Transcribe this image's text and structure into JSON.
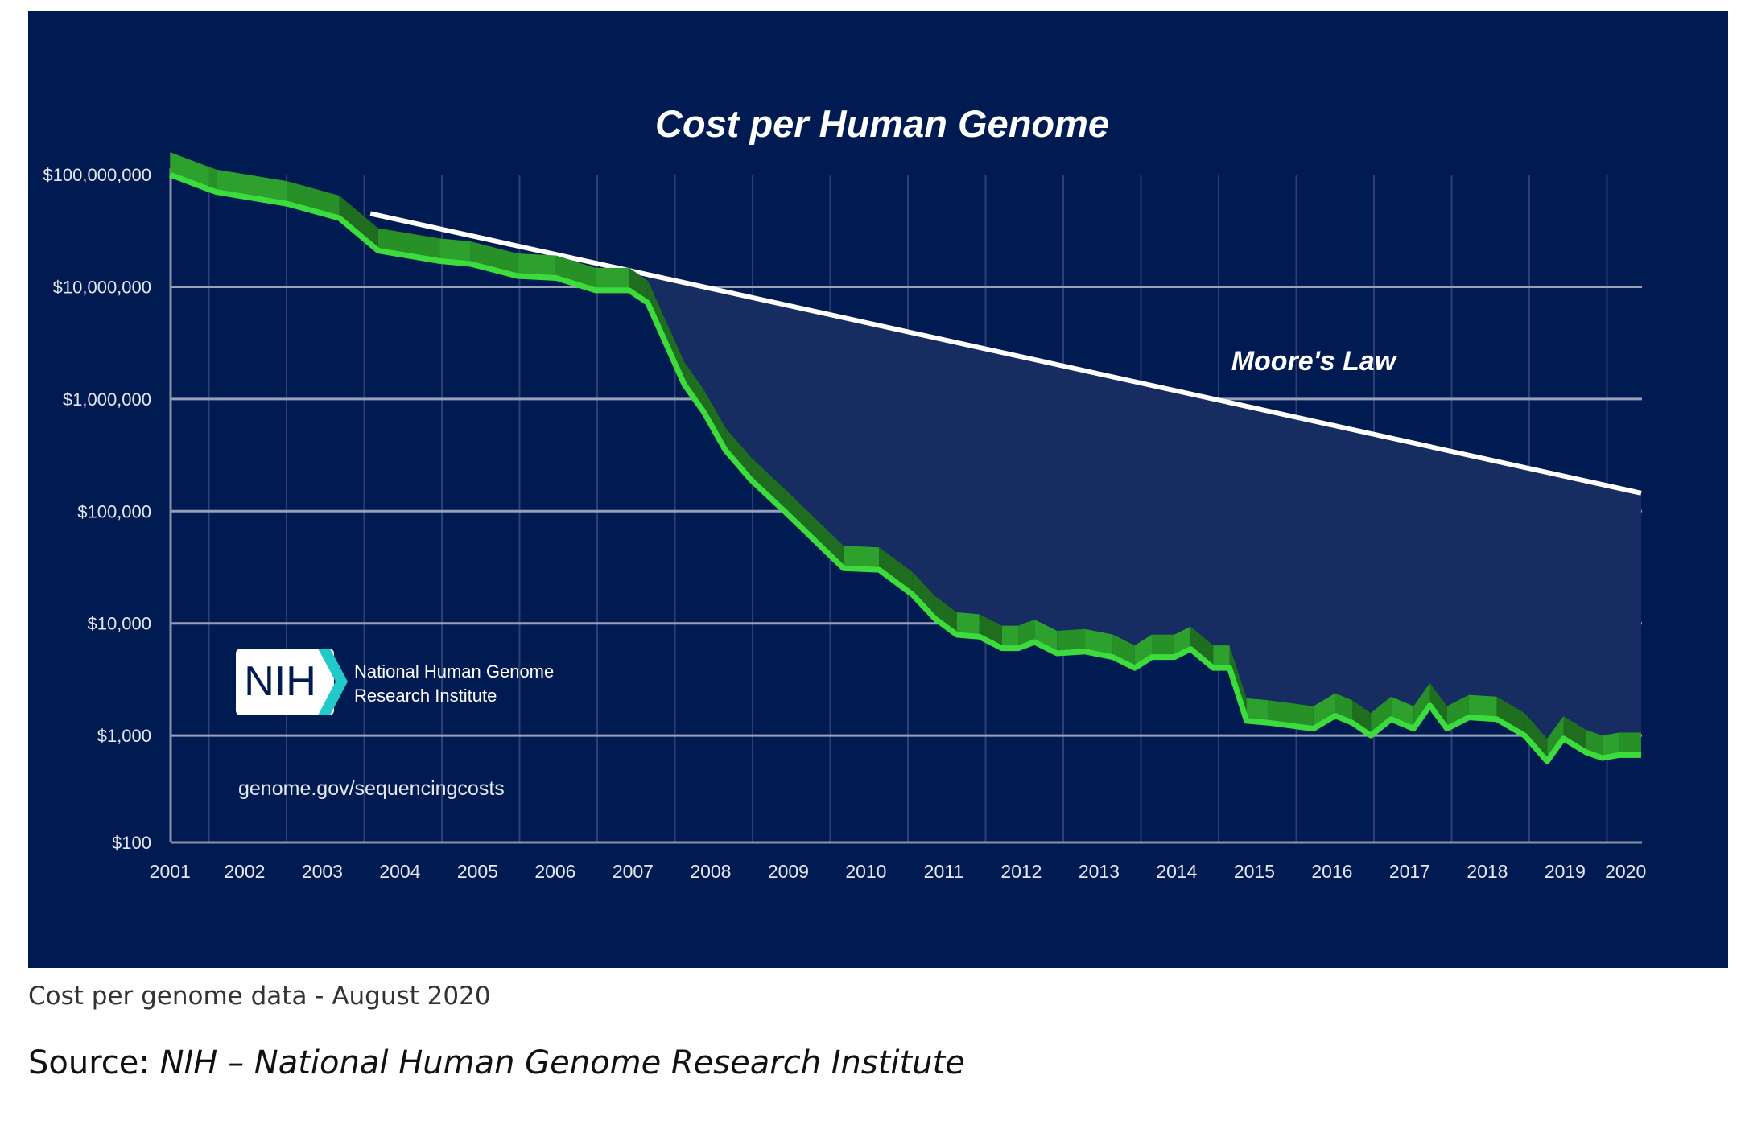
{
  "chart_data": {
    "type": "line",
    "title": "Cost per Human Genome",
    "xlabel": "",
    "ylabel": "",
    "yscale": "log",
    "ylim": [
      100,
      100000000
    ],
    "y_ticks": [
      {
        "value": 100000000,
        "label": "$100,000,000"
      },
      {
        "value": 10000000,
        "label": "$10,000,000"
      },
      {
        "value": 1000000,
        "label": "$1,000,000"
      },
      {
        "value": 100000,
        "label": "$100,000"
      },
      {
        "value": 10000,
        "label": "$10,000"
      },
      {
        "value": 1000,
        "label": "$1,000"
      },
      {
        "value": 100,
        "label": "$100"
      }
    ],
    "x_ticks": [
      "2001",
      "2002",
      "2003",
      "2004",
      "2005",
      "2006",
      "2007",
      "2008",
      "2009",
      "2010",
      "2011",
      "2012",
      "2013",
      "2014",
      "2015",
      "2016",
      "2017",
      "2018",
      "2019",
      "2020"
    ],
    "grid": true,
    "series": [
      {
        "name": "Cost per Genome",
        "color": "#3ddc3d",
        "x": [
          2001.04,
          2001.54,
          2001.64,
          2002.55,
          2003.22,
          2003.72,
          2004.51,
          2004.91,
          2005.51,
          2006.01,
          2006.52,
          2006.95,
          2007.19,
          2007.66,
          2007.91,
          2008.19,
          2008.52,
          2008.95,
          2009.71,
          2010.17,
          2010.6,
          2010.89,
          2011.17,
          2011.46,
          2011.75,
          2011.96,
          2012.17,
          2012.46,
          2012.82,
          2013.18,
          2013.46,
          2013.68,
          2013.97,
          2014.18,
          2014.47,
          2014.68,
          2014.9,
          2015.18,
          2015.76,
          2016.04,
          2016.26,
          2016.5,
          2016.76,
          2017.05,
          2017.26,
          2017.48,
          2017.76,
          2018.12,
          2018.48,
          2018.77,
          2018.98,
          2019.27,
          2019.48,
          2019.7,
          2019.98
        ],
        "y": [
          100000000,
          74000000,
          70000000,
          55000000,
          41000000,
          21000000,
          17000000,
          16000000,
          12500000,
          12000000,
          9300000,
          9300000,
          7200000,
          1350000,
          770000,
          350000,
          190000,
          100000,
          31000,
          30000,
          18000,
          11000,
          7900,
          7600,
          6000,
          6000,
          6800,
          5400,
          5600,
          5000,
          4000,
          5000,
          5000,
          5900,
          4000,
          4000,
          1350,
          1300,
          1150,
          1500,
          1300,
          1000,
          1400,
          1150,
          1850,
          1150,
          1450,
          1400,
          1000,
          590,
          940,
          710,
          630,
          670,
          670
        ]
      },
      {
        "name": "Moore's Law",
        "color": "#ffffff",
        "x": [
          2003.62,
          2019.98
        ],
        "y": [
          45000000,
          145000
        ]
      }
    ],
    "annotations": [
      "Moore's Law"
    ]
  },
  "logo": {
    "text": "NIH",
    "line1": "National Human Genome",
    "line2": "Research Institute"
  },
  "url": "genome.gov/sequencingcosts",
  "caption": "Cost per genome data - August 2020",
  "source_prefix": "Source: ",
  "source_name": "NIH – National Human Genome Research Institute",
  "colors": {
    "background": "#001a52",
    "shade": "#172d62",
    "green_dark": "#1f6e1f",
    "green_light": "#2ea02e"
  }
}
